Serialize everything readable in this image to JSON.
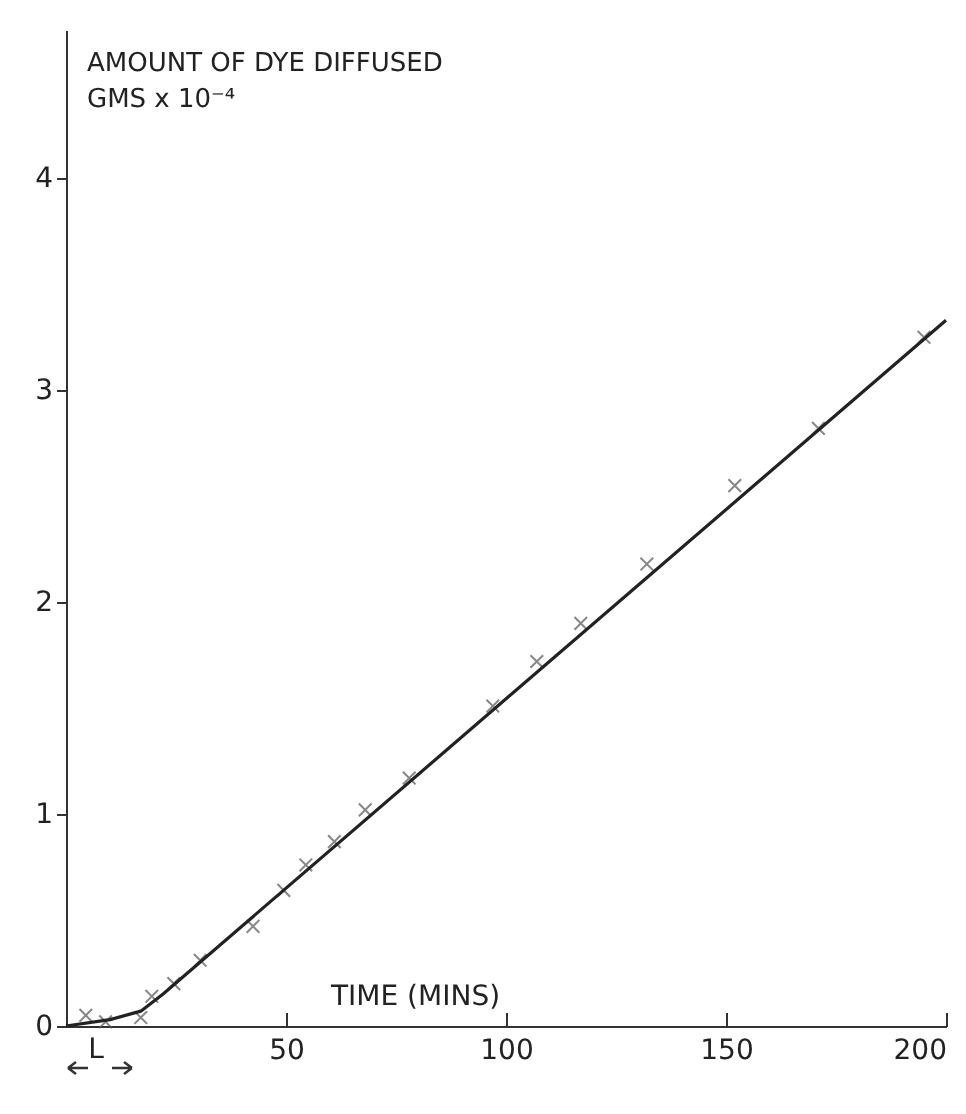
{
  "chart_data": {
    "type": "scatter",
    "xlabel": "TIME (MINS)",
    "ylabel": "AMOUNT OF DYE DIFFUSED\nGMS x 10⁻⁴",
    "annotations": [
      "L"
    ],
    "xlim": [
      0,
      200
    ],
    "xticks": [
      50,
      100,
      150,
      200
    ],
    "ylim": [
      0,
      4.7
    ],
    "yticks": [
      0,
      1,
      2,
      3,
      4
    ],
    "series": [
      {
        "color": "#555555",
        "marker": "cross",
        "x": [
          4.5,
          9,
          17,
          19.5,
          24.5,
          30.5,
          42.5,
          49.5,
          54.5,
          61,
          68,
          78,
          97,
          107,
          117,
          132,
          152,
          171,
          195
        ],
        "values": [
          0.05,
          0.02,
          0.04,
          0.14,
          0.2,
          0.31,
          0.47,
          0.64,
          0.76,
          0.87,
          1.02,
          1.17,
          1.51,
          1.72,
          1.9,
          2.18,
          2.55,
          2.82,
          3.25
        ]
      },
      {
        "type": "line",
        "color": "#222222",
        "line_style": "solid",
        "x": [
          0,
          10,
          17,
          22,
          200
        ],
        "values": [
          0,
          0.03,
          0.07,
          0.15,
          3.33
        ]
      }
    ]
  }
}
